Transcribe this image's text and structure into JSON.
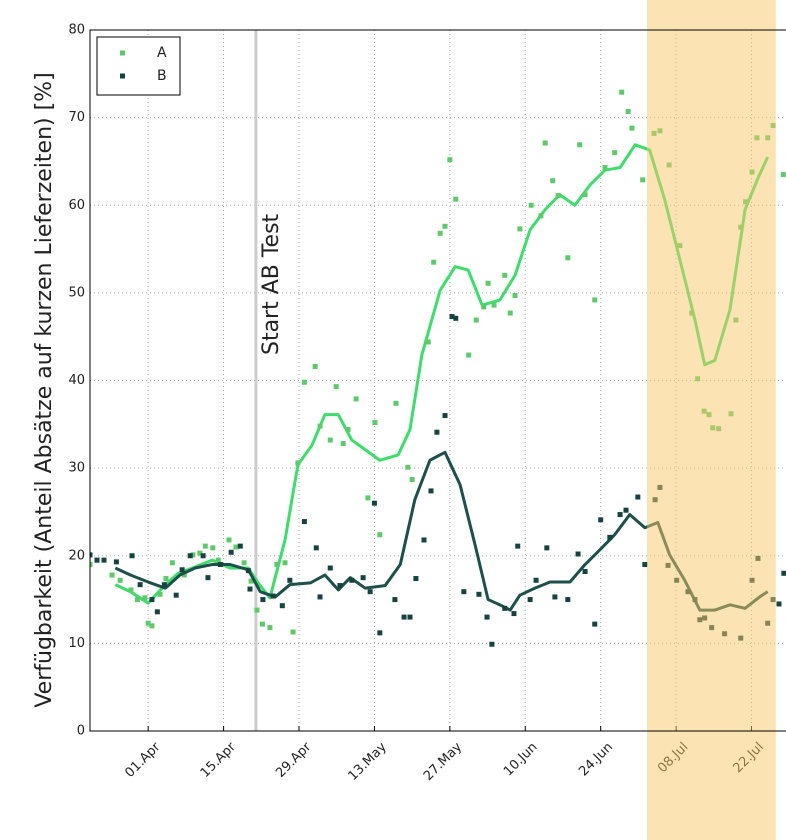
{
  "chart_data": {
    "type": "scatter",
    "ylabel": "Verfügbarkeit (Anteil Absätze auf kurzen Lieferzeiten) [%]",
    "xlim": [
      -10.8,
      118.4
    ],
    "ylim": [
      0,
      80
    ],
    "yticks": [
      0,
      10,
      20,
      30,
      40,
      50,
      60,
      70,
      80
    ],
    "xticks": [
      {
        "value": 0,
        "label": "01.Apr"
      },
      {
        "value": 14,
        "label": "15.Apr"
      },
      {
        "value": 28,
        "label": "29.Apr"
      },
      {
        "value": 42,
        "label": "13.May"
      },
      {
        "value": 56,
        "label": "27.May"
      },
      {
        "value": 70,
        "label": "10.Jun"
      },
      {
        "value": 84,
        "label": "24.Jun"
      },
      {
        "value": 98,
        "label": "08.Jul"
      },
      {
        "value": 112,
        "label": "22.Jul"
      }
    ],
    "grid": true,
    "legend": "upper left",
    "shade": {
      "range": [
        92.6,
        116.5
      ],
      "color": "#f7c768"
    },
    "annotations": [
      {
        "x": 20,
        "text": "Start AB Test"
      }
    ],
    "series": [
      {
        "name": "A",
        "color": "#5ec96a",
        "line_color": "#3ddc6b",
        "x": [
          -10.8,
          -9.5,
          -6.7,
          -5.2,
          -3.2,
          -2,
          -0.6,
          0,
          0.7,
          2.2,
          3.3,
          4.5,
          6.7,
          8.3,
          9.6,
          10.6,
          12,
          13,
          15,
          16.3,
          17.8,
          19.1,
          20.2,
          21.2,
          22.6,
          23.9,
          25.4,
          26.9,
          27.8,
          29,
          31,
          31.9,
          33.8,
          34.9,
          36.2,
          37.1,
          38.6,
          40.8,
          42.1,
          43,
          46,
          48.2,
          49,
          52,
          53,
          54.2,
          55.1,
          56,
          57.1,
          59.5,
          60.9,
          62.3,
          63.1,
          64.2,
          66.2,
          67.2,
          68.1,
          69,
          71.1,
          72.9,
          73.7,
          75.1,
          76.1,
          77.9,
          80.1,
          81.1,
          82.9,
          84.8,
          86.6,
          87.9,
          89.1,
          89.8,
          91.8,
          93.9,
          95,
          96.7,
          98.7,
          100.9,
          102,
          103.2,
          104.1,
          104.8,
          105.9,
          108.2,
          109.1,
          110,
          110.9,
          112.1,
          113,
          115,
          116,
          117.9
        ],
        "values": [
          19,
          19.5,
          17.8,
          17.2,
          16.1,
          15,
          15.2,
          12.3,
          12,
          15.6,
          17.4,
          19.2,
          17.8,
          20.1,
          20.3,
          21.1,
          20.9,
          19.5,
          21.8,
          21,
          19.2,
          17.1,
          13.8,
          12.2,
          11.8,
          19,
          19.2,
          11.3,
          30.6,
          39.8,
          41.6,
          34.8,
          33.2,
          39.3,
          32.8,
          34.4,
          37.9,
          26.6,
          35.2,
          22.4,
          37.4,
          30.1,
          28.7,
          44.4,
          53.5,
          56.8,
          57.6,
          65.2,
          60.7,
          42.9,
          46.9,
          48.4,
          51.1,
          48.6,
          52,
          47.7,
          49.7,
          57.3,
          60,
          58.8,
          67.1,
          62.8,
          61.1,
          54,
          66.9,
          61.2,
          49.2,
          64.3,
          66,
          72.9,
          70.7,
          68.8,
          62.9,
          68.2,
          68.5,
          64.6,
          55.4,
          47.7,
          40.2,
          36.5,
          36.1,
          34.6,
          34.5,
          36.2,
          46.9,
          57.5,
          60.4,
          63.8,
          67.7,
          67.7,
          69.1,
          63.5
        ],
        "trend_x": [
          -6.1,
          -3.3,
          0,
          3.2,
          5.6,
          8.2,
          11.9,
          15.2,
          18.6,
          20.4,
          22.6,
          25.4,
          27.8,
          30.4,
          32.8,
          35.3,
          37.8,
          40.3,
          43,
          46.4,
          48.6,
          50.8,
          54.2,
          57,
          59.4,
          62,
          65.3,
          68.1,
          70.9,
          73.7,
          76.4,
          79.2,
          82,
          84.8,
          87.6,
          90.4,
          93.1,
          95.9,
          98.7,
          101.5,
          103.3,
          105.2,
          108,
          110.8,
          113.2,
          115
        ],
        "trend_values": [
          16.7,
          15.9,
          14.6,
          16.7,
          18,
          18.6,
          19.5,
          18.6,
          18.6,
          16.9,
          15.2,
          21.8,
          30.4,
          32.6,
          36.1,
          36.1,
          33.2,
          32.1,
          30.9,
          31.5,
          34.4,
          42.9,
          50.3,
          53,
          52.6,
          48.6,
          49.2,
          52,
          57.2,
          59.5,
          61.2,
          60,
          62.3,
          64,
          64.3,
          66.9,
          66.3,
          60.6,
          53.8,
          46.9,
          41.8,
          42.3,
          48.1,
          59.5,
          63.1,
          65.5
        ]
      },
      {
        "name": "B",
        "color": "#16433f",
        "line_color": "#1d4f4b",
        "x": [
          -10.8,
          -9.5,
          -8.2,
          -5.9,
          -3,
          -1.5,
          0.7,
          1.7,
          3,
          5.2,
          6.3,
          7.8,
          10.2,
          11.1,
          13.4,
          15.4,
          17.1,
          18.6,
          18.9,
          21.3,
          23.2,
          24.9,
          26.3,
          29,
          31.2,
          31.9,
          33.8,
          35.6,
          37.8,
          39.9,
          41.2,
          42,
          43,
          45.8,
          47.5,
          48.6,
          49.7,
          51.2,
          52.5,
          53.6,
          55.1,
          56.4,
          57.1,
          58.6,
          61.4,
          62.9,
          63.8,
          66.2,
          67.9,
          68.6,
          70.9,
          72,
          74,
          75.5,
          77.9,
          79.8,
          81.1,
          82.9,
          84,
          85.7,
          87.6,
          88.7,
          90.9,
          92.2,
          94.1,
          95,
          96.5,
          98.1,
          100.2,
          101.5,
          102.4,
          103.3,
          104.6,
          107,
          110,
          112.1,
          113.2,
          115,
          116,
          117.1,
          118
        ],
        "values": [
          20.1,
          19.5,
          19.5,
          19.3,
          20,
          16.7,
          15,
          13.6,
          16.7,
          15.5,
          18.4,
          20,
          20,
          17.5,
          19,
          20.4,
          21.1,
          18.3,
          16.2,
          15,
          15.4,
          14.3,
          17.2,
          23.9,
          20.9,
          15.3,
          18.6,
          16.6,
          17.2,
          17.5,
          15.9,
          26,
          11.2,
          15,
          13,
          13,
          17.4,
          21.8,
          27.4,
          34.1,
          36,
          47.3,
          47.1,
          15.9,
          15.6,
          13,
          9.9,
          14,
          13.4,
          21.1,
          15,
          17.2,
          20.9,
          15.3,
          15,
          20.2,
          18.2,
          12.2,
          24.1,
          22.1,
          24.7,
          25.2,
          26.7,
          19,
          26.4,
          27.8,
          18.9,
          17.2,
          15.9,
          15,
          12.7,
          12.9,
          11.8,
          11.1,
          10.6,
          17.2,
          19.7,
          12.3,
          15,
          14.5,
          18
        ],
        "trend_x": [
          -6.1,
          -3.3,
          0,
          3.2,
          5.9,
          8.7,
          11.9,
          15.2,
          18.6,
          20.8,
          23.6,
          26.3,
          30.1,
          32.8,
          35.3,
          37.5,
          40.3,
          44,
          46.8,
          49.5,
          52.3,
          55.1,
          57.9,
          60.7,
          63.1,
          65.3,
          67.2,
          69,
          71.8,
          74.6,
          78.3,
          81.1,
          83.9,
          86.6,
          89.4,
          92.2,
          94.6,
          96.8,
          99.6,
          102.4,
          105.2,
          108,
          110.8,
          113.5,
          115
        ],
        "trend_values": [
          18.6,
          17.8,
          17,
          16.3,
          17.8,
          18.6,
          19,
          19,
          18.4,
          15.9,
          15.3,
          16.7,
          16.9,
          17.8,
          16.1,
          17.5,
          16.3,
          16.6,
          19,
          26.4,
          30.9,
          31.8,
          28.1,
          21.2,
          15,
          14.4,
          13.8,
          15.5,
          16.3,
          17,
          17,
          19,
          20.7,
          22.4,
          24.7,
          23.2,
          23.8,
          20.1,
          17.2,
          13.8,
          13.8,
          14.4,
          14,
          15.3,
          15.9
        ]
      }
    ]
  }
}
